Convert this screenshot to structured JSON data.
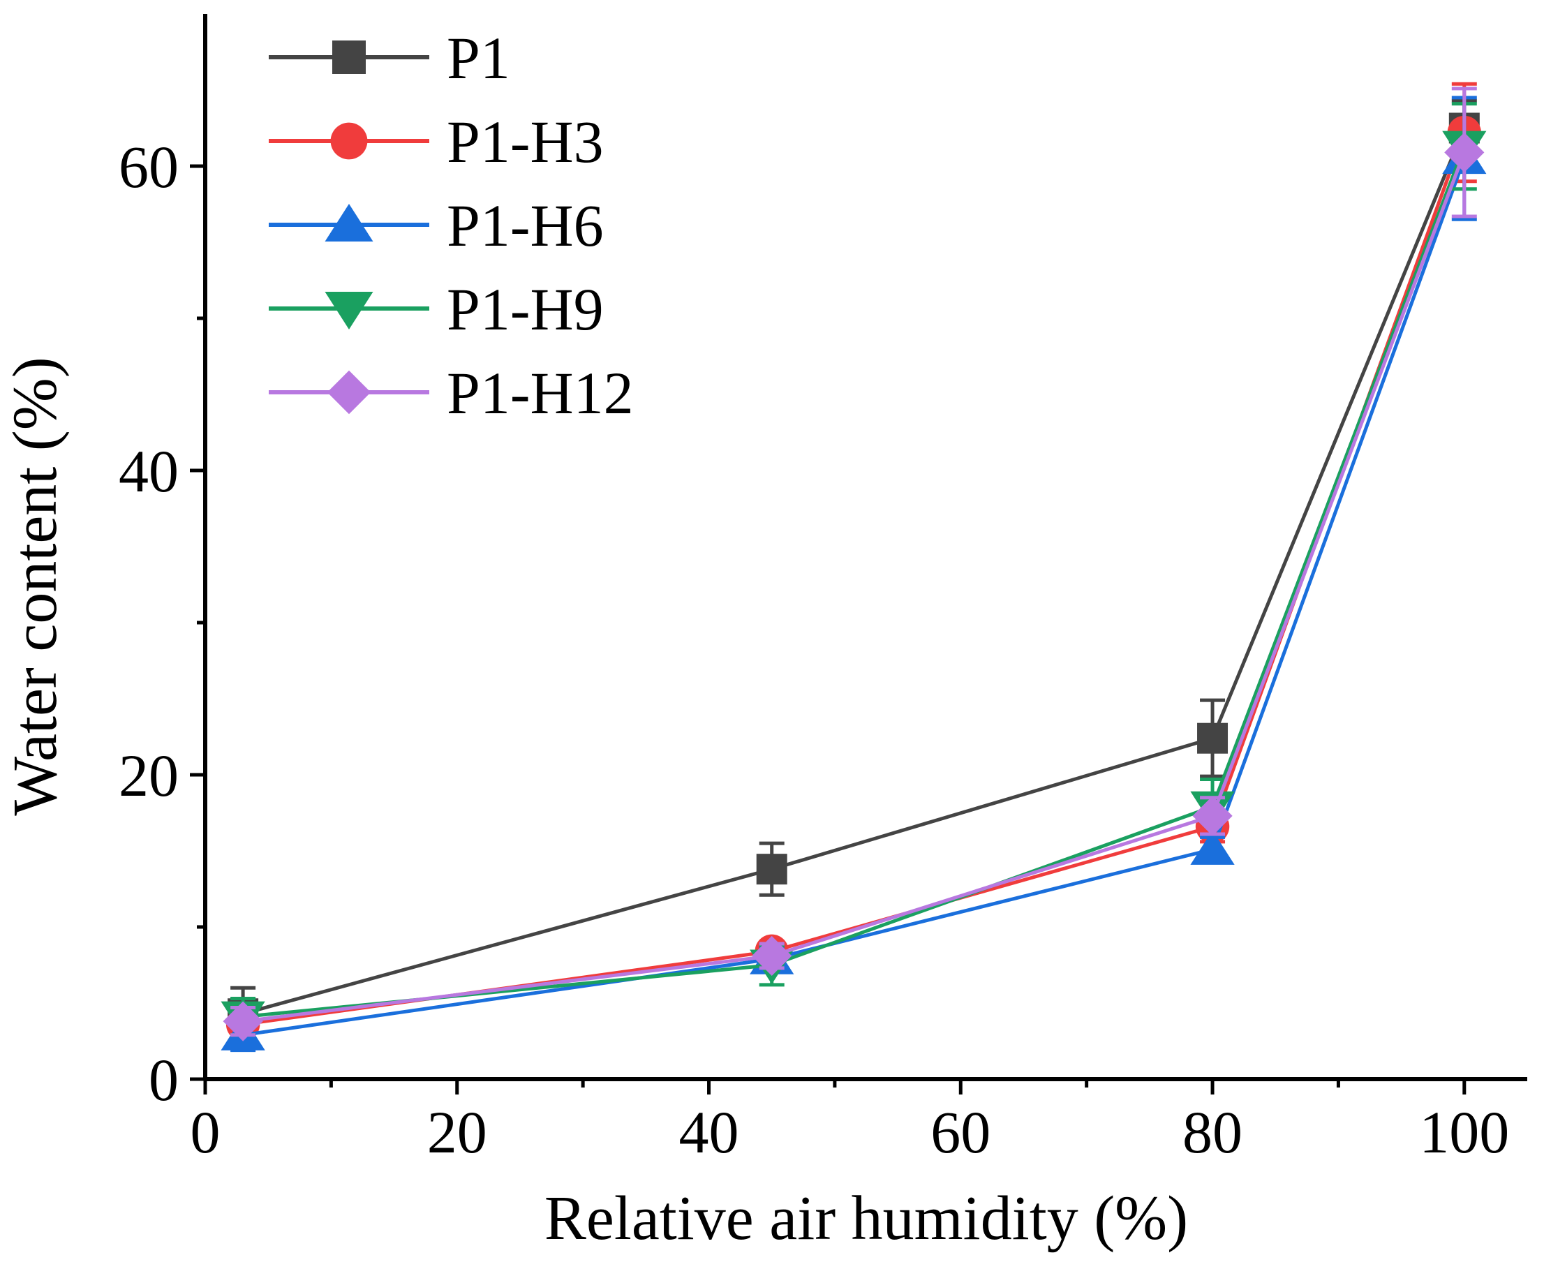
{
  "chart_data": {
    "type": "line",
    "title": "",
    "xlabel": "Relative air humidity (%)",
    "ylabel": "Water content (%)",
    "xlim": [
      0,
      105
    ],
    "ylim": [
      0,
      70
    ],
    "x_ticks": [
      0,
      20,
      40,
      60,
      80,
      100
    ],
    "y_ticks": [
      0,
      20,
      40,
      60
    ],
    "x_tick_labels": [
      "0",
      "20",
      "40",
      "60",
      "80",
      "100"
    ],
    "y_tick_labels": [
      "0",
      "20",
      "40",
      "60"
    ],
    "legend_position": "top-left",
    "x": [
      3,
      45,
      80,
      100
    ],
    "series": [
      {
        "name": "P1",
        "color": "#444444",
        "marker": "square",
        "values": [
          4.3,
          13.8,
          22.4,
          62.5
        ],
        "errors": [
          1.7,
          1.7,
          2.5,
          1.8
        ]
      },
      {
        "name": "P1-H3",
        "color": "#f03c3c",
        "marker": "circle",
        "values": [
          3.6,
          8.4,
          16.6,
          62.2
        ],
        "errors": [
          0.8,
          0.6,
          1.0,
          3.2
        ]
      },
      {
        "name": "P1-H6",
        "color": "#1a6fdc",
        "marker": "triangle-up",
        "values": [
          2.9,
          7.9,
          15.1,
          60.5
        ],
        "errors": [
          1.0,
          0.8,
          0.8,
          4.0
        ]
      },
      {
        "name": "P1-H9",
        "color": "#1aa060",
        "marker": "triangle-down",
        "values": [
          4.1,
          7.5,
          17.9,
          61.3
        ],
        "errors": [
          1.2,
          1.3,
          1.8,
          2.8
        ]
      },
      {
        "name": "P1-H12",
        "color": "#b878e0",
        "marker": "diamond",
        "values": [
          3.8,
          8.1,
          17.3,
          60.9
        ],
        "errors": [
          0.9,
          0.8,
          1.2,
          4.2
        ]
      }
    ]
  }
}
